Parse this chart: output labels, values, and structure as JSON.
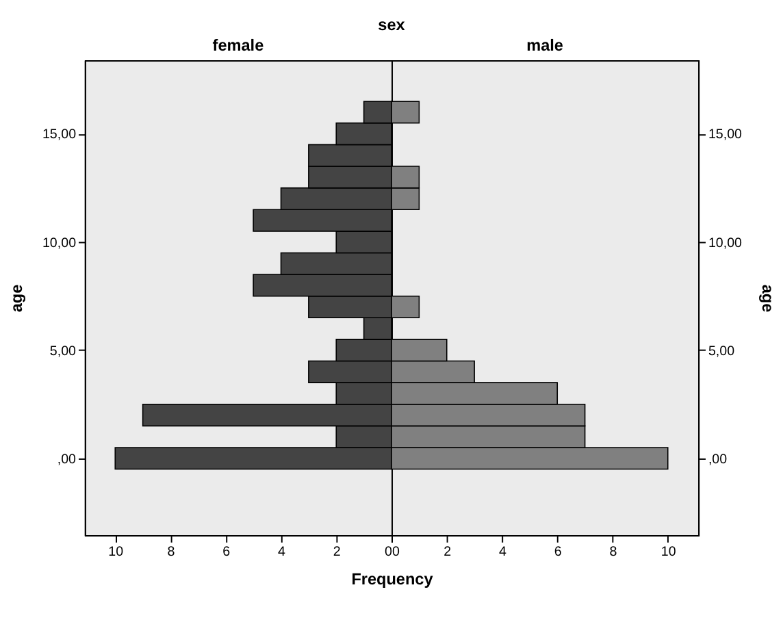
{
  "chart_data": [
    {
      "type": "bar",
      "orientation": "horizontal",
      "title": "female",
      "annotations": [
        "sex"
      ],
      "xlabel": "Frequency",
      "ylabel": "age",
      "x": [
        0,
        1,
        2,
        3,
        4,
        5,
        6,
        7,
        8,
        9,
        10,
        11,
        12,
        13,
        14,
        15,
        16
      ],
      "series": [
        {
          "color": "#444444",
          "values": [
            10,
            2,
            9,
            2,
            3,
            2,
            1,
            3,
            5,
            4,
            2,
            5,
            4,
            3,
            3,
            2,
            1
          ]
        }
      ],
      "xlim": [
        11.1,
        0
      ],
      "xticks": [
        10,
        8,
        6,
        4,
        2,
        0
      ],
      "ylim": [
        -3.55,
        18.4
      ],
      "yticks": [
        {
          "value": 0,
          "label": ",00"
        },
        {
          "value": 5,
          "label": "5,00"
        },
        {
          "value": 10,
          "label": "10,00"
        },
        {
          "value": 15,
          "label": "15,00"
        }
      ],
      "grid": false
    },
    {
      "type": "bar",
      "orientation": "horizontal",
      "title": "male",
      "ylabel": "age",
      "x": [
        0,
        1,
        2,
        3,
        4,
        5,
        6,
        7,
        8,
        9,
        10,
        11,
        12,
        13,
        14,
        15,
        16
      ],
      "series": [
        {
          "color": "#808080",
          "values": [
            10,
            7,
            7,
            6,
            3,
            2,
            0,
            1,
            0,
            0,
            0,
            0,
            1,
            1,
            0,
            0,
            1
          ]
        }
      ],
      "xlim": [
        0,
        11.1
      ],
      "xticks": [
        0,
        2,
        4,
        6,
        8,
        10
      ],
      "ylim": [
        -3.55,
        18.4
      ],
      "yticks": [
        {
          "value": 0,
          "label": ",00"
        },
        {
          "value": 5,
          "label": "5,00"
        },
        {
          "value": 10,
          "label": "10,00"
        },
        {
          "value": 15,
          "label": "15,00"
        }
      ],
      "grid": false
    }
  ]
}
